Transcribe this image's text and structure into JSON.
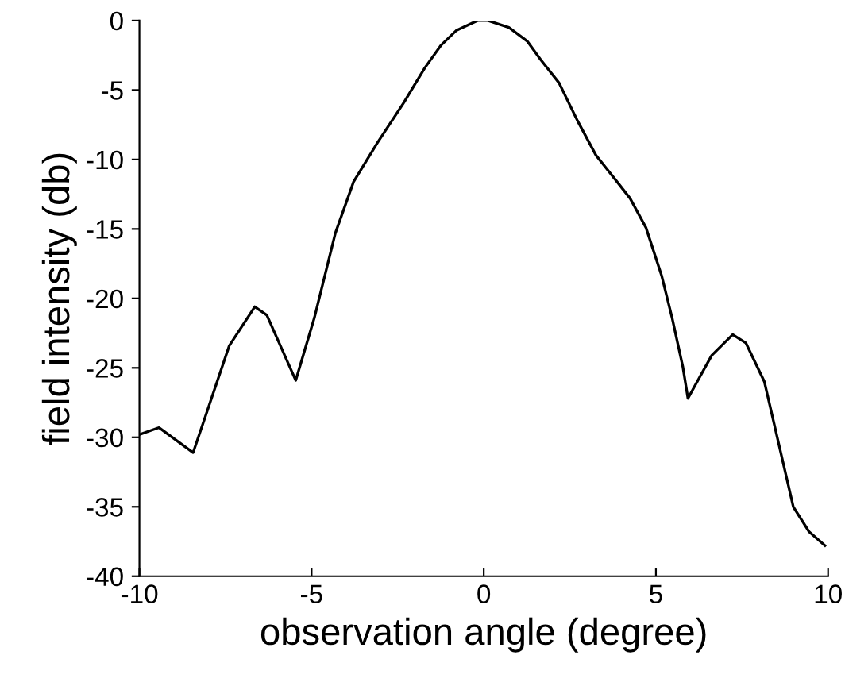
{
  "chart_data": {
    "type": "line",
    "xlabel": "observation angle (degree)",
    "ylabel": "field intensity (db)",
    "xlim": [
      -10,
      10
    ],
    "ylim": [
      -40,
      0
    ],
    "xticks": [
      -10,
      -5,
      0,
      5,
      10
    ],
    "yticks": [
      -40,
      -35,
      -30,
      -25,
      -20,
      -15,
      -10,
      -5,
      0
    ],
    "grid": false,
    "marker": "none",
    "line_style": "solid",
    "series": [
      {
        "color": "#000000",
        "x": [
          -10,
          -9.43,
          -8.44,
          -7.39,
          -6.65,
          -6.3,
          -5.46,
          -4.92,
          -4.31,
          -3.78,
          -3.09,
          -2.32,
          -1.71,
          -1.25,
          -0.79,
          -0.18,
          0.12,
          0.73,
          1.27,
          1.65,
          2.19,
          2.72,
          3.26,
          3.87,
          4.25,
          4.71,
          5.17,
          5.47,
          5.78,
          5.93,
          6.62,
          7.23,
          7.61,
          8.15,
          8.99,
          9.45,
          9.91
        ],
        "values": [
          -29.8,
          -29.3,
          -31.1,
          -23.4,
          -20.6,
          -21.2,
          -25.9,
          -21.4,
          -15.3,
          -11.6,
          -8.8,
          -5.9,
          -3.4,
          -1.8,
          -0.7,
          0,
          0,
          -0.5,
          -1.5,
          -2.8,
          -4.5,
          -7.2,
          -9.7,
          -11.6,
          -12.8,
          -14.9,
          -18.4,
          -21.4,
          -24.9,
          -27.2,
          -24.1,
          -22.6,
          -23.2,
          -26,
          -35,
          -36.8,
          -37.8
        ]
      }
    ]
  }
}
